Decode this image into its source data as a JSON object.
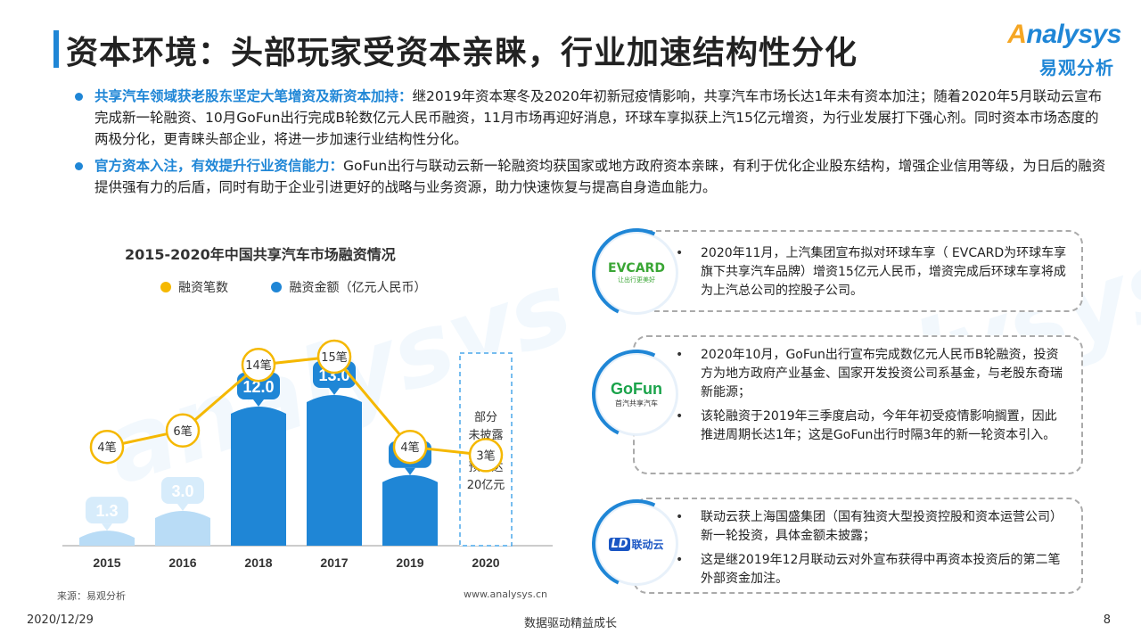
{
  "header": {
    "title": "资本环境：头部玩家受资本亲睐，行业加速结构性分化",
    "logo_brand_prefix": "A",
    "logo_brand_rest": "nalysys",
    "logo_cn": "易观分析"
  },
  "bullets": [
    {
      "highlight": "共享汽车领域获老股东坚定大笔增资及新资本加持：",
      "text": "继2019年资本寒冬及2020年初新冠疫情影响，共享汽车市场长达1年未有资本加注；随着2020年5月联动云宣布完成新一轮融资、10月GoFun出行完成B轮数亿元人民币融资，11月市场再迎好消息，环球车享拟获上汽15亿元增资，为行业发展打下强心剂。同时资本市场态度的两极分化，更青睐头部企业，将进一步加速行业结构性分化。"
    },
    {
      "highlight": "官方资本入注，有效提升行业资信能力：",
      "text": "GoFun出行与联动云新一轮融资均获国家或地方政府资本亲睐，有利于优化企业股东结构，增强企业信用等级，为日后的融资提供强有力的后盾，同时有助于企业引进更好的战略与业务资源，助力快速恢复与提高自身造血能力。"
    }
  ],
  "chart_data": {
    "type": "bar",
    "title": "2015-2020年中国共享汽车市场融资情况",
    "categories": [
      "2015",
      "2016",
      "2018",
      "2017",
      "2019",
      "2020"
    ],
    "series": [
      {
        "name": "融资笔数",
        "type": "line",
        "color": "#f5b800",
        "values": [
          4,
          6,
          14,
          15,
          4,
          3
        ],
        "labels": [
          "4笔",
          "6笔",
          "14笔",
          "15笔",
          "4笔",
          "3笔"
        ]
      },
      {
        "name": "融资金额（亿元人民币）",
        "type": "bar",
        "color": "#1f86d6",
        "values": [
          1.3,
          3.0,
          12.0,
          13.0,
          6.1,
          null
        ],
        "labels": [
          "1.3",
          "3.0",
          "12.0",
          "13.0",
          "6.1",
          ""
        ]
      }
    ],
    "annotation_2020": [
      "部分",
      "未披露",
      "预计达",
      "20亿元"
    ],
    "colors": {
      "bar_light": "#b9dcf6",
      "bar_mid": "#8cc6f0",
      "bar_dark": "#1f86d6",
      "line": "#f5b800"
    }
  },
  "source": {
    "left": "来源：易观分析",
    "right": "www.analysys.cn"
  },
  "cards": [
    {
      "logo": "EVCARD",
      "logo_sub": "让出行更美好",
      "items": [
        "2020年11月，上汽集团宣布拟对环球车享（ EVCARD为环球车享旗下共享汽车品牌）增资15亿元人民币，增资完成后环球车享将成为上汽总公司的控股子公司。"
      ]
    },
    {
      "logo": "GoFun",
      "logo_sub": "首汽共享汽车",
      "items": [
        "2020年10月，GoFun出行宣布完成数亿元人民币B轮融资，投资方为地方政府产业基金、国家开发投资公司系基金，与老股东奇瑞新能源；",
        "该轮融资于2019年三季度启动，今年年初受疫情影响搁置，因此推进周期长达1年；这是GoFun出行时隔3年的新一轮资本引入。"
      ]
    },
    {
      "logo": "联动云",
      "logo_mark": "LD",
      "items": [
        "联动云获上海国盛集团（国有独资大型投资控股和资本运营公司）新一轮投资，具体金额未披露；",
        "这是继2019年12月联动云对外宣布获得中再资本投资后的第二笔外部资金加注。"
      ]
    }
  ],
  "footer": {
    "date": "2020/12/29",
    "slogan": "数据驱动精益成长",
    "page": "8"
  }
}
